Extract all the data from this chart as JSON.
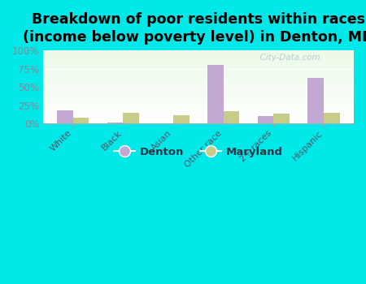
{
  "title": "Breakdown of poor residents within races\n(income below poverty level) in Denton, MD",
  "categories": [
    "White",
    "Black",
    "Asian",
    "Other race",
    "2+ races",
    "Hispanic"
  ],
  "denton_values": [
    18,
    1,
    0,
    80,
    10,
    62
  ],
  "maryland_values": [
    8,
    14,
    11,
    17,
    13,
    14
  ],
  "denton_color": "#c4a8d4",
  "maryland_color": "#c8cc8a",
  "background_outer": "#00e8e8",
  "yticks": [
    0,
    25,
    50,
    75,
    100
  ],
  "ytick_labels": [
    "0%",
    "25%",
    "50%",
    "75%",
    "100%"
  ],
  "title_fontsize": 12.5,
  "legend_labels": [
    "Denton",
    "Maryland"
  ],
  "bar_width": 0.32,
  "watermark": "  City-Data.com"
}
